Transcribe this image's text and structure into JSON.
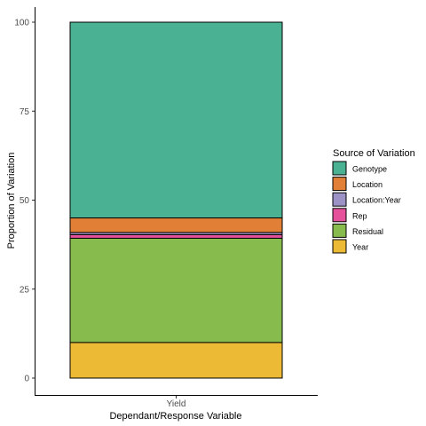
{
  "chart_data": {
    "type": "bar",
    "stacked": true,
    "xlabel": "Dependant/Response Variable",
    "ylabel": "Proportion of Variation",
    "categories": [
      "Yield"
    ],
    "ylim": [
      0,
      100
    ],
    "yticks": [
      0,
      25,
      50,
      75,
      100
    ],
    "grid": false,
    "legend": {
      "title": "Source of Variation",
      "position": "right"
    },
    "series": [
      {
        "name": "Genotype",
        "color": "#4BB193",
        "values": [
          55.0
        ]
      },
      {
        "name": "Location",
        "color": "#E07F35",
        "values": [
          4.1
        ]
      },
      {
        "name": "Location:Year",
        "color": "#9C92C5",
        "values": [
          0.6
        ]
      },
      {
        "name": "Rep",
        "color": "#E5519B",
        "values": [
          1.0
        ]
      },
      {
        "name": "Residual",
        "color": "#88BB4D",
        "values": [
          29.3
        ]
      },
      {
        "name": "Year",
        "color": "#ECBA35",
        "values": [
          10.0
        ]
      }
    ]
  }
}
